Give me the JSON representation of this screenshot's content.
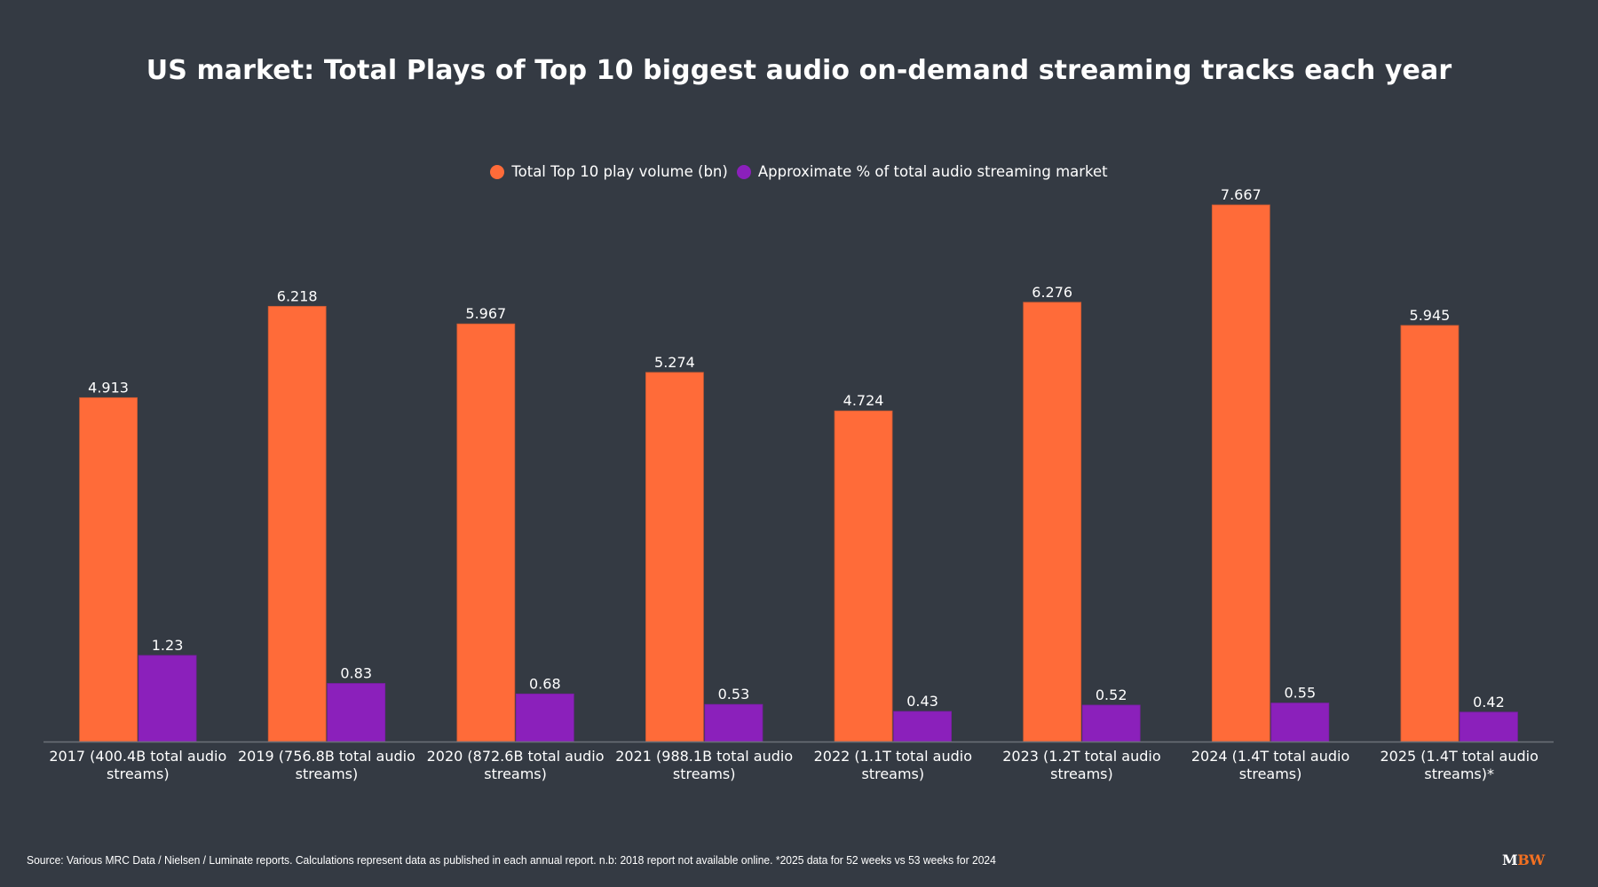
{
  "chart_data": {
    "type": "bar",
    "title": "US market: Total Plays of Top 10 biggest audio on-demand streaming tracks each year",
    "xlabel": "",
    "ylabel": "",
    "ylim": [
      0,
      7.667
    ],
    "grid": false,
    "legend_position": "top-center",
    "categories": [
      [
        "2017 (400.4B total audio",
        "streams)"
      ],
      [
        "2019 (756.8B total audio",
        "streams)"
      ],
      [
        "2020 (872.6B total audio",
        "streams)"
      ],
      [
        "2021 (988.1B total audio",
        "streams)"
      ],
      [
        "2022 (1.1T total audio",
        "streams)"
      ],
      [
        "2023 (1.2T total audio",
        "streams)"
      ],
      [
        "2024 (1.4T total audio",
        "streams)"
      ],
      [
        "2025 (1.4T total audio",
        "streams)*"
      ]
    ],
    "series": [
      {
        "name": "Total Top 10 play volume (bn)",
        "color": "#ff6b39",
        "values": [
          4.913,
          6.218,
          5.967,
          5.274,
          4.724,
          6.276,
          7.667,
          5.945
        ],
        "labels": [
          "4.913",
          "6.218",
          "5.967",
          "5.274",
          "4.724",
          "6.276",
          "7.667",
          "5.945"
        ]
      },
      {
        "name": "Approximate % of total audio streaming market",
        "color": "#8b20bb",
        "values": [
          1.23,
          0.83,
          0.68,
          0.53,
          0.43,
          0.52,
          0.55,
          0.42
        ],
        "labels": [
          "1.23",
          "0.83",
          "0.68",
          "0.53",
          "0.43",
          "0.52",
          "0.55",
          "0.42"
        ]
      }
    ]
  },
  "footer": {
    "source": "Source: Various MRC Data / Nielsen / Luminate reports. Calculations represent data as published in each annual report. n.b: 2018 report not available online. *2025 data for 52 weeks vs 53 weeks for 2024",
    "logo_part1": "M",
    "logo_part2": "BW"
  },
  "colors": {
    "background": "#343a43",
    "axis": "#6b7079"
  }
}
